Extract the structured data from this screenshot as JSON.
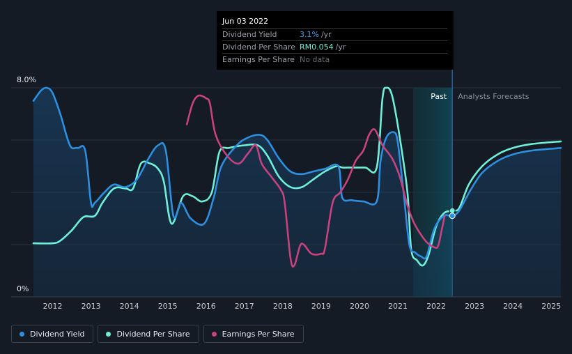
{
  "tooltip": {
    "date": "Jun 03 2022",
    "rows": [
      {
        "label": "Dividend Yield",
        "value": "3.1%",
        "unit": "/yr"
      },
      {
        "label": "Dividend Per Share",
        "value": "RM0.054",
        "unit": "/yr"
      },
      {
        "label": "Earnings Per Share",
        "value": "No data",
        "unit": ""
      }
    ]
  },
  "legend": [
    {
      "label": "Dividend Yield",
      "color": "#2d8fe0"
    },
    {
      "label": "Dividend Per Share",
      "color": "#6ff0d8"
    },
    {
      "label": "Earnings Per Share",
      "color": "#c8427d"
    }
  ],
  "chart_data": {
    "type": "line",
    "title": "",
    "xlabel": "",
    "ylabel": "",
    "ylim": [
      0,
      8
    ],
    "xlim": [
      2011.5,
      2025.25
    ],
    "y_tick_labels": [
      "8.0%",
      "0%"
    ],
    "x_tick_labels": [
      "2012",
      "2013",
      "2014",
      "2015",
      "2016",
      "2017",
      "2018",
      "2019",
      "2020",
      "2021",
      "2022",
      "2023",
      "2024",
      "2025"
    ],
    "region_labels": {
      "past": "Past",
      "forecast": "Analysts Forecasts"
    },
    "past_region": [
      2021.4,
      2022.42
    ],
    "series": [
      {
        "name": "Dividend Yield",
        "color": "#2d8fe0",
        "points": [
          [
            2011.5,
            7.5
          ],
          [
            2011.7,
            7.9
          ],
          [
            2011.85,
            8.0
          ],
          [
            2012.0,
            7.8
          ],
          [
            2012.2,
            7.0
          ],
          [
            2012.45,
            5.8
          ],
          [
            2012.65,
            5.7
          ],
          [
            2012.85,
            5.6
          ],
          [
            2013.0,
            3.6
          ],
          [
            2013.1,
            3.6
          ],
          [
            2013.35,
            4.0
          ],
          [
            2013.6,
            4.3
          ],
          [
            2013.9,
            4.2
          ],
          [
            2014.2,
            4.5
          ],
          [
            2014.5,
            5.3
          ],
          [
            2014.75,
            5.8
          ],
          [
            2014.95,
            5.6
          ],
          [
            2015.15,
            3.1
          ],
          [
            2015.35,
            3.6
          ],
          [
            2015.6,
            3.0
          ],
          [
            2015.95,
            2.8
          ],
          [
            2016.2,
            3.8
          ],
          [
            2016.4,
            5.0
          ],
          [
            2016.8,
            5.8
          ],
          [
            2017.1,
            6.1
          ],
          [
            2017.4,
            6.2
          ],
          [
            2017.6,
            6.0
          ],
          [
            2017.9,
            5.3
          ],
          [
            2018.2,
            4.8
          ],
          [
            2018.5,
            4.7
          ],
          [
            2018.8,
            4.8
          ],
          [
            2019.1,
            4.9
          ],
          [
            2019.45,
            5.0
          ],
          [
            2019.55,
            3.8
          ],
          [
            2019.8,
            3.7
          ],
          [
            2020.1,
            3.65
          ],
          [
            2020.45,
            3.65
          ],
          [
            2020.55,
            5.2
          ],
          [
            2020.7,
            6.1
          ],
          [
            2020.9,
            6.3
          ],
          [
            2021.0,
            5.9
          ],
          [
            2021.15,
            4.0
          ],
          [
            2021.3,
            2.0
          ],
          [
            2021.45,
            1.7
          ],
          [
            2021.6,
            1.55
          ],
          [
            2021.75,
            1.55
          ],
          [
            2021.95,
            2.6
          ],
          [
            2022.2,
            3.1
          ],
          [
            2022.42,
            3.1
          ],
          [
            2022.6,
            3.3
          ],
          [
            2022.9,
            4.1
          ],
          [
            2023.2,
            4.75
          ],
          [
            2023.6,
            5.2
          ],
          [
            2024.0,
            5.45
          ],
          [
            2024.5,
            5.6
          ],
          [
            2025.25,
            5.7
          ]
        ]
      },
      {
        "name": "Dividend Per Share",
        "color": "#6ff0d8",
        "points": [
          [
            2011.5,
            2.05
          ],
          [
            2012.0,
            2.05
          ],
          [
            2012.2,
            2.15
          ],
          [
            2012.5,
            2.55
          ],
          [
            2012.8,
            3.05
          ],
          [
            2013.1,
            3.1
          ],
          [
            2013.3,
            3.6
          ],
          [
            2013.6,
            4.15
          ],
          [
            2013.9,
            4.15
          ],
          [
            2014.1,
            4.15
          ],
          [
            2014.3,
            5.1
          ],
          [
            2014.55,
            5.1
          ],
          [
            2014.75,
            4.9
          ],
          [
            2014.9,
            4.4
          ],
          [
            2015.1,
            2.8
          ],
          [
            2015.4,
            3.85
          ],
          [
            2015.65,
            3.85
          ],
          [
            2015.9,
            3.65
          ],
          [
            2016.15,
            4.0
          ],
          [
            2016.35,
            5.55
          ],
          [
            2016.6,
            5.7
          ],
          [
            2017.0,
            5.8
          ],
          [
            2017.35,
            5.8
          ],
          [
            2017.6,
            5.4
          ],
          [
            2017.9,
            4.6
          ],
          [
            2018.2,
            4.2
          ],
          [
            2018.5,
            4.2
          ],
          [
            2018.8,
            4.5
          ],
          [
            2019.1,
            4.8
          ],
          [
            2019.4,
            5.0
          ],
          [
            2019.55,
            4.95
          ],
          [
            2019.8,
            4.95
          ],
          [
            2020.15,
            4.95
          ],
          [
            2020.45,
            4.95
          ],
          [
            2020.6,
            7.6
          ],
          [
            2020.7,
            8.0
          ],
          [
            2020.85,
            7.7
          ],
          [
            2021.05,
            6.1
          ],
          [
            2021.25,
            4.0
          ],
          [
            2021.35,
            1.8
          ],
          [
            2021.5,
            1.4
          ],
          [
            2021.65,
            1.2
          ],
          [
            2021.8,
            1.6
          ],
          [
            2022.0,
            2.7
          ],
          [
            2022.2,
            3.2
          ],
          [
            2022.42,
            3.3
          ],
          [
            2022.6,
            3.4
          ],
          [
            2022.85,
            4.3
          ],
          [
            2023.2,
            5.0
          ],
          [
            2023.6,
            5.45
          ],
          [
            2024.0,
            5.7
          ],
          [
            2024.5,
            5.85
          ],
          [
            2025.25,
            5.95
          ]
        ]
      },
      {
        "name": "Earnings Per Share",
        "color": "#c8427d",
        "points": [
          [
            2015.5,
            6.6
          ],
          [
            2015.65,
            7.4
          ],
          [
            2015.8,
            7.7
          ],
          [
            2016.0,
            7.6
          ],
          [
            2016.1,
            7.4
          ],
          [
            2016.25,
            6.2
          ],
          [
            2016.55,
            5.4
          ],
          [
            2016.85,
            5.1
          ],
          [
            2017.1,
            5.5
          ],
          [
            2017.3,
            5.8
          ],
          [
            2017.45,
            5.1
          ],
          [
            2017.7,
            4.6
          ],
          [
            2017.95,
            4.1
          ],
          [
            2018.05,
            3.6
          ],
          [
            2018.2,
            1.5
          ],
          [
            2018.3,
            1.2
          ],
          [
            2018.45,
            1.95
          ],
          [
            2018.55,
            2.0
          ],
          [
            2018.75,
            1.65
          ],
          [
            2019.0,
            1.65
          ],
          [
            2019.1,
            1.85
          ],
          [
            2019.3,
            3.6
          ],
          [
            2019.5,
            4.0
          ],
          [
            2019.7,
            4.5
          ],
          [
            2019.9,
            5.2
          ],
          [
            2020.1,
            5.6
          ],
          [
            2020.25,
            6.2
          ],
          [
            2020.4,
            6.4
          ],
          [
            2020.6,
            5.8
          ],
          [
            2020.85,
            5.3
          ],
          [
            2021.05,
            4.6
          ],
          [
            2021.25,
            3.5
          ],
          [
            2021.4,
            2.9
          ],
          [
            2021.55,
            2.5
          ],
          [
            2021.75,
            2.1
          ],
          [
            2021.95,
            1.9
          ],
          [
            2022.05,
            1.95
          ],
          [
            2022.15,
            2.6
          ],
          [
            2022.22,
            3.1
          ]
        ]
      }
    ]
  }
}
